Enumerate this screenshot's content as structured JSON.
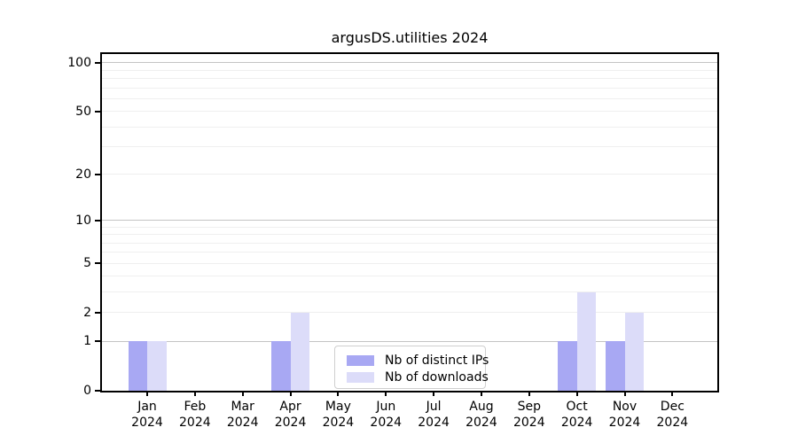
{
  "chart_data": {
    "type": "bar",
    "title": "argusDS.utilities 2024",
    "x": {
      "months": [
        "Jan",
        "Feb",
        "Mar",
        "Apr",
        "May",
        "Jun",
        "Jul",
        "Aug",
        "Sep",
        "Oct",
        "Nov",
        "Dec"
      ],
      "year": "2024"
    },
    "series": [
      {
        "name": "Nb of distinct IPs",
        "color": "#a8a8f3",
        "values": [
          1,
          0,
          0,
          1,
          0,
          0,
          0,
          0,
          0,
          1,
          1,
          0
        ]
      },
      {
        "name": "Nb of downloads",
        "color": "#dcdcf9",
        "values": [
          1,
          0,
          0,
          2,
          0,
          0,
          0,
          0,
          0,
          3,
          2,
          0
        ]
      }
    ],
    "yscale": "log1p",
    "ylim": [
      0,
      113
    ],
    "ytick_labels": [
      0,
      1,
      2,
      5,
      10,
      20,
      50,
      100
    ],
    "grid": "horizontal",
    "grid_major_values": [
      1,
      10,
      100
    ],
    "grid_minor_values": [
      2,
      3,
      4,
      5,
      6,
      7,
      8,
      9,
      20,
      30,
      40,
      50,
      60,
      70,
      80,
      90
    ],
    "legend_position": "inside-bottom-center",
    "colors": {
      "grid_major": "#c4c4c4",
      "grid_minor": "#efefef",
      "spine": "#000000",
      "text": "#000000"
    }
  }
}
